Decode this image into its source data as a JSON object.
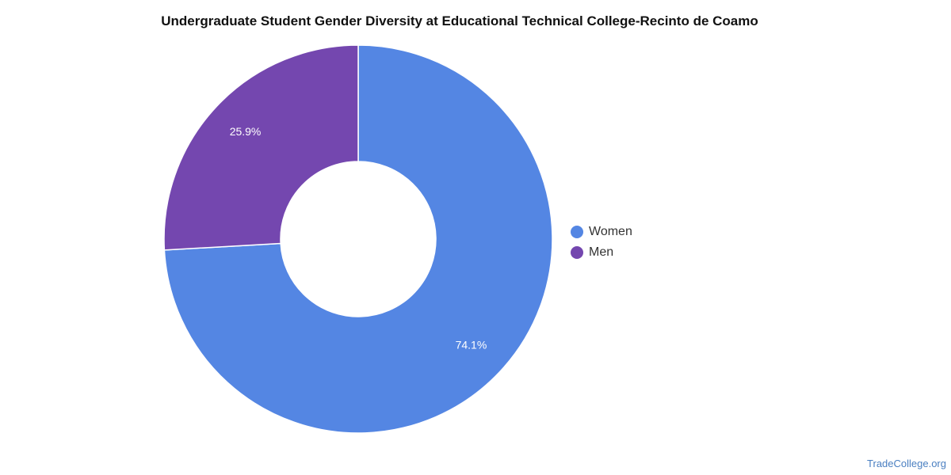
{
  "chart_data": {
    "type": "pie",
    "title": "Undergraduate Student Gender Diversity at Educational Technical College-Recinto de Coamo",
    "categories": [
      "Women",
      "Men"
    ],
    "values": [
      74.1,
      25.9
    ],
    "data_labels": [
      "74.1%",
      "25.9%"
    ],
    "colors": [
      "#5486e3",
      "#7447af"
    ],
    "donut": true,
    "legend_position": "right"
  },
  "legend": {
    "items": [
      {
        "label": "Women",
        "color": "#5486e3"
      },
      {
        "label": "Men",
        "color": "#7447af"
      }
    ]
  },
  "watermark": "TradeCollege.org"
}
